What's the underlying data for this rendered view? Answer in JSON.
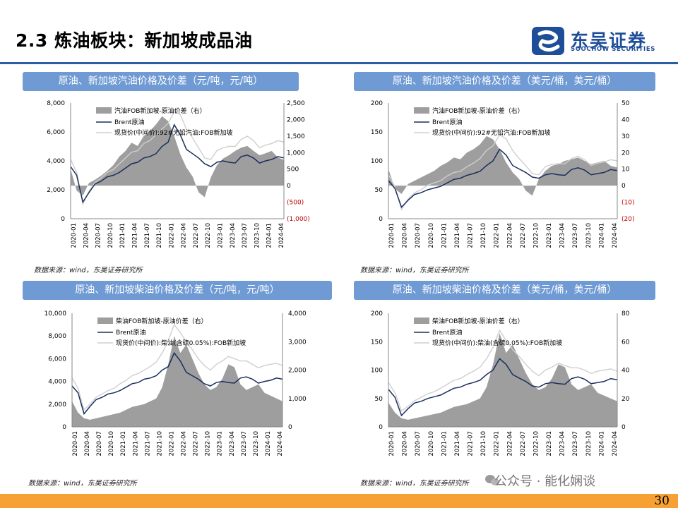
{
  "header": {
    "title": "2.3 炼油板块：新加坡成品油",
    "logo_cn": "东吴证券",
    "logo_en": "SOOCHOW SECURITIES"
  },
  "footer": {
    "page_number": "30",
    "watermark": "公众号 · 能化娴谈"
  },
  "chart_data": [
    {
      "type": "area",
      "title": "原油、新加坡汽油价格及价差（元/吨，元/吨）",
      "source": "数据来源：wind，东吴证券研究所",
      "x_ticks": [
        "2020-01",
        "2020-04",
        "2020-07",
        "2020-10",
        "2021-01",
        "2021-04",
        "2021-07",
        "2021-10",
        "2022-01",
        "2022-04",
        "2022-07",
        "2022-10",
        "2023-01",
        "2023-04",
        "2023-07",
        "2023-10",
        "2024-01",
        "2024-04"
      ],
      "y_left_ticks": [
        "8,000",
        "6,000",
        "4,000",
        "2,000",
        "0"
      ],
      "y_right_ticks": [
        "2,500",
        "2,000",
        "1,500",
        "1,000",
        "500",
        "0",
        "(500)",
        "(1,000)"
      ],
      "ylim_left": [
        0,
        8000
      ],
      "ylim_right": [
        -1000,
        2500
      ],
      "legend": [
        "汽油FOB新加坡-原油价差（右）",
        "Brent原油",
        "现货价(中间价):92#无铅汽油:FOB新加坡"
      ],
      "series": [
        {
          "name": "spread",
          "axis": "right",
          "values": [
            500,
            -150,
            -300,
            80,
            180,
            300,
            450,
            620,
            880,
            1050,
            1300,
            1200,
            1500,
            1650,
            1850,
            2100,
            1950,
            1500,
            950,
            550,
            280,
            -200,
            -350,
            250,
            620,
            820,
            920,
            1050,
            1150,
            1200,
            1050,
            920,
            980,
            1050,
            850,
            780
          ]
        },
        {
          "name": "brent",
          "axis": "left",
          "values": [
            3600,
            3000,
            1150,
            1800,
            2400,
            2600,
            2900,
            3000,
            3200,
            3500,
            3800,
            3900,
            4200,
            4300,
            4500,
            5000,
            5300,
            6500,
            5800,
            4800,
            4500,
            4200,
            3800,
            3600,
            3900,
            4000,
            3900,
            3850,
            4300,
            4400,
            4200,
            3850,
            4000,
            4100,
            4300,
            4200
          ]
        },
        {
          "name": "spot",
          "axis": "left",
          "values": [
            4100,
            3200,
            1000,
            1900,
            2500,
            2800,
            3200,
            3400,
            3800,
            4200,
            4600,
            4700,
            5200,
            5400,
            5800,
            6200,
            6600,
            7400,
            7200,
            6200,
            5600,
            4900,
            4200,
            4100,
            4700,
            4900,
            5000,
            5000,
            5500,
            5700,
            5400,
            4900,
            5100,
            5200,
            5400,
            5300
          ]
        }
      ]
    },
    {
      "type": "area",
      "title": "原油、新加坡汽油价格及价差（美元/桶，美元/桶）",
      "source": "数据来源：wind，东吴证券研究所",
      "x_ticks": [
        "2020-01",
        "2020-04",
        "2020-07",
        "2020-10",
        "2021-01",
        "2021-04",
        "2021-07",
        "2021-10",
        "2022-01",
        "2022-04",
        "2022-07",
        "2022-10",
        "2023-01",
        "2023-04",
        "2023-07",
        "2023-10",
        "2024-01",
        "2024-04"
      ],
      "y_left_ticks": [
        "200",
        "150",
        "100",
        "50",
        "0"
      ],
      "y_right_ticks": [
        "50",
        "40",
        "30",
        "20",
        "10",
        "0",
        "(10)",
        "(20)"
      ],
      "ylim_left": [
        0,
        200
      ],
      "ylim_right": [
        -20,
        50
      ],
      "legend": [
        "汽油FOB新加坡-原油价差（右）",
        "Brent原油",
        "现货价(中间价):92#无铅汽油:FOB新加坡"
      ],
      "series": [
        {
          "name": "spread",
          "axis": "right",
          "values": [
            10,
            -2,
            -5,
            1,
            3,
            5,
            7,
            9,
            12,
            14,
            17,
            16,
            20,
            22,
            25,
            30,
            28,
            22,
            14,
            8,
            4,
            -3,
            -6,
            4,
            9,
            12,
            13,
            15,
            16,
            17,
            15,
            13,
            14,
            15,
            12,
            11
          ]
        },
        {
          "name": "brent",
          "axis": "left",
          "values": [
            66,
            52,
            20,
            32,
            42,
            45,
            50,
            53,
            56,
            62,
            68,
            70,
            75,
            78,
            82,
            92,
            100,
            120,
            110,
            92,
            86,
            80,
            72,
            70,
            76,
            78,
            76,
            75,
            85,
            88,
            84,
            76,
            78,
            80,
            85,
            83
          ]
        },
        {
          "name": "spot",
          "axis": "left",
          "values": [
            76,
            55,
            16,
            34,
            45,
            50,
            58,
            62,
            66,
            74,
            80,
            82,
            90,
            96,
            104,
            118,
            126,
            145,
            138,
            118,
            104,
            92,
            78,
            76,
            90,
            94,
            95,
            95,
            104,
            108,
            102,
            92,
            96,
            98,
            102,
            100
          ]
        }
      ]
    },
    {
      "type": "area",
      "title": "原油、新加坡柴油价格及价差（元/吨，元/吨）",
      "source": "数据来源：wind，东吴证券研究所",
      "x_ticks": [
        "2020-01",
        "2020-04",
        "2020-07",
        "2020-10",
        "2021-01",
        "2021-04",
        "2021-07",
        "2021-10",
        "2022-01",
        "2022-04",
        "2022-07",
        "2022-10",
        "2023-01",
        "2023-04",
        "2023-07",
        "2023-10",
        "2024-01",
        "2024-04"
      ],
      "y_left_ticks": [
        "10,000",
        "8,000",
        "6,000",
        "4,000",
        "2,000",
        "0"
      ],
      "y_right_ticks": [
        "4,000",
        "3,000",
        "2,000",
        "1,000",
        "0"
      ],
      "ylim_left": [
        0,
        10000
      ],
      "ylim_right": [
        0,
        4000
      ],
      "legend": [
        "柴油FOB新加坡-原油价差（右）",
        "Brent原油",
        "现货价(中间价):柴油(含硫0.05%):FOB新加坡"
      ],
      "series": [
        {
          "name": "spread",
          "axis": "right",
          "values": [
            900,
            500,
            300,
            250,
            300,
            350,
            400,
            450,
            500,
            600,
            700,
            750,
            800,
            900,
            1000,
            1400,
            2200,
            3200,
            2600,
            2900,
            2400,
            1900,
            1500,
            1300,
            1400,
            1700,
            2200,
            2100,
            1500,
            1300,
            1400,
            1500,
            1200,
            1100,
            1000,
            900
          ]
        },
        {
          "name": "brent",
          "axis": "left",
          "values": [
            3600,
            3000,
            1150,
            1800,
            2400,
            2600,
            2900,
            3000,
            3200,
            3500,
            3800,
            3900,
            4200,
            4300,
            4500,
            5000,
            5300,
            6500,
            5800,
            4800,
            4500,
            4200,
            3800,
            3600,
            3900,
            4000,
            3900,
            3850,
            4300,
            4400,
            4200,
            3850,
            4000,
            4100,
            4300,
            4200
          ]
        },
        {
          "name": "spot",
          "axis": "left",
          "values": [
            4300,
            3400,
            1500,
            2000,
            2600,
            2900,
            3200,
            3400,
            3800,
            4100,
            4500,
            4700,
            5000,
            5300,
            5700,
            6500,
            7600,
            9000,
            8300,
            7500,
            6800,
            6000,
            5400,
            5000,
            5500,
            5800,
            6200,
            6000,
            5800,
            5800,
            5500,
            5200,
            5400,
            5500,
            5600,
            5400
          ]
        }
      ]
    },
    {
      "type": "area",
      "title": "原油、新加坡柴油价格及价差（美元/桶，美元/桶）",
      "source": "数据来源：wind，东吴证券研究所",
      "x_ticks": [
        "2020-01",
        "2020-04",
        "2020-07",
        "2020-10",
        "2021-01",
        "2021-04",
        "2021-07",
        "2021-10",
        "2022-01",
        "2022-04",
        "2022-07",
        "2022-10",
        "2023-01",
        "2023-04",
        "2023-07",
        "2023-10",
        "2024-01",
        "2024-04"
      ],
      "y_left_ticks": [
        "200",
        "150",
        "100",
        "50",
        "0"
      ],
      "y_right_ticks": [
        "80",
        "60",
        "40",
        "20",
        "0"
      ],
      "ylim_left": [
        0,
        200
      ],
      "ylim_right": [
        0,
        80
      ],
      "legend": [
        "柴油FOB新加坡-原油价差（右）",
        "Brent原油",
        "现货价(中间价):柴油(含硫0.05%):FOB新加坡"
      ],
      "series": [
        {
          "name": "spread",
          "axis": "right",
          "values": [
            17,
            10,
            6,
            5,
            6,
            7,
            8,
            9,
            10,
            12,
            14,
            15,
            16,
            18,
            20,
            28,
            44,
            66,
            52,
            58,
            48,
            38,
            30,
            26,
            28,
            34,
            44,
            42,
            30,
            26,
            28,
            30,
            24,
            22,
            20,
            18
          ]
        },
        {
          "name": "brent",
          "axis": "left",
          "values": [
            66,
            52,
            20,
            32,
            42,
            45,
            50,
            53,
            56,
            62,
            68,
            70,
            75,
            78,
            82,
            92,
            100,
            120,
            110,
            92,
            86,
            80,
            72,
            70,
            76,
            78,
            76,
            75,
            85,
            88,
            84,
            76,
            78,
            80,
            85,
            83
          ]
        },
        {
          "name": "spot",
          "axis": "left",
          "values": [
            78,
            60,
            28,
            36,
            46,
            52,
            58,
            62,
            68,
            75,
            82,
            85,
            92,
            98,
            105,
            120,
            140,
            170,
            152,
            136,
            124,
            110,
            98,
            90,
            100,
            105,
            112,
            108,
            104,
            104,
            100,
            94,
            98,
            100,
            102,
            98
          ]
        }
      ]
    }
  ]
}
